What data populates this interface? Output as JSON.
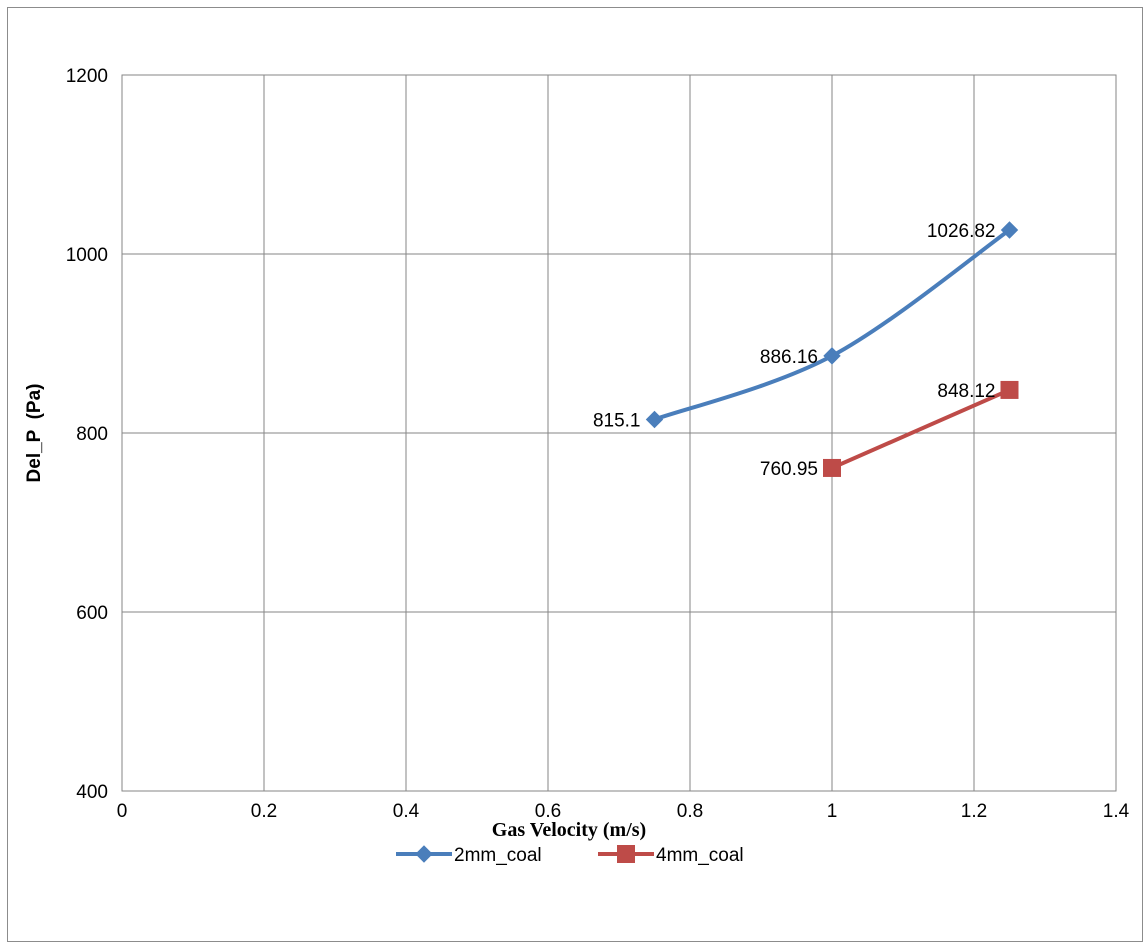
{
  "chart_data": {
    "type": "line",
    "title": "",
    "xlabel": "Gas Velocity (m/s)",
    "ylabel": "Del_P  (Pa)",
    "xlim": [
      0,
      1.4
    ],
    "ylim": [
      400,
      1200
    ],
    "xticks": [
      "0",
      "0.2",
      "0.4",
      "0.6",
      "0.8",
      "1",
      "1.2",
      "1.4"
    ],
    "yticks": [
      "400",
      "600",
      "800",
      "1000",
      "1200"
    ],
    "grid": true,
    "legend_position": "bottom",
    "smooth": true,
    "series": [
      {
        "name": "2mm_coal",
        "color": "#4a7ebb",
        "marker": "diamond",
        "x": [
          0.75,
          1.0,
          1.25
        ],
        "y": [
          815.1,
          886.16,
          1026.82
        ],
        "labels": [
          "815.1",
          "886.16",
          "1026.82"
        ]
      },
      {
        "name": "4mm_coal",
        "color": "#be4b48",
        "marker": "square",
        "x": [
          1.0,
          1.25
        ],
        "y": [
          760.95,
          848.12
        ],
        "labels": [
          "760.95",
          "848.12"
        ]
      }
    ]
  }
}
